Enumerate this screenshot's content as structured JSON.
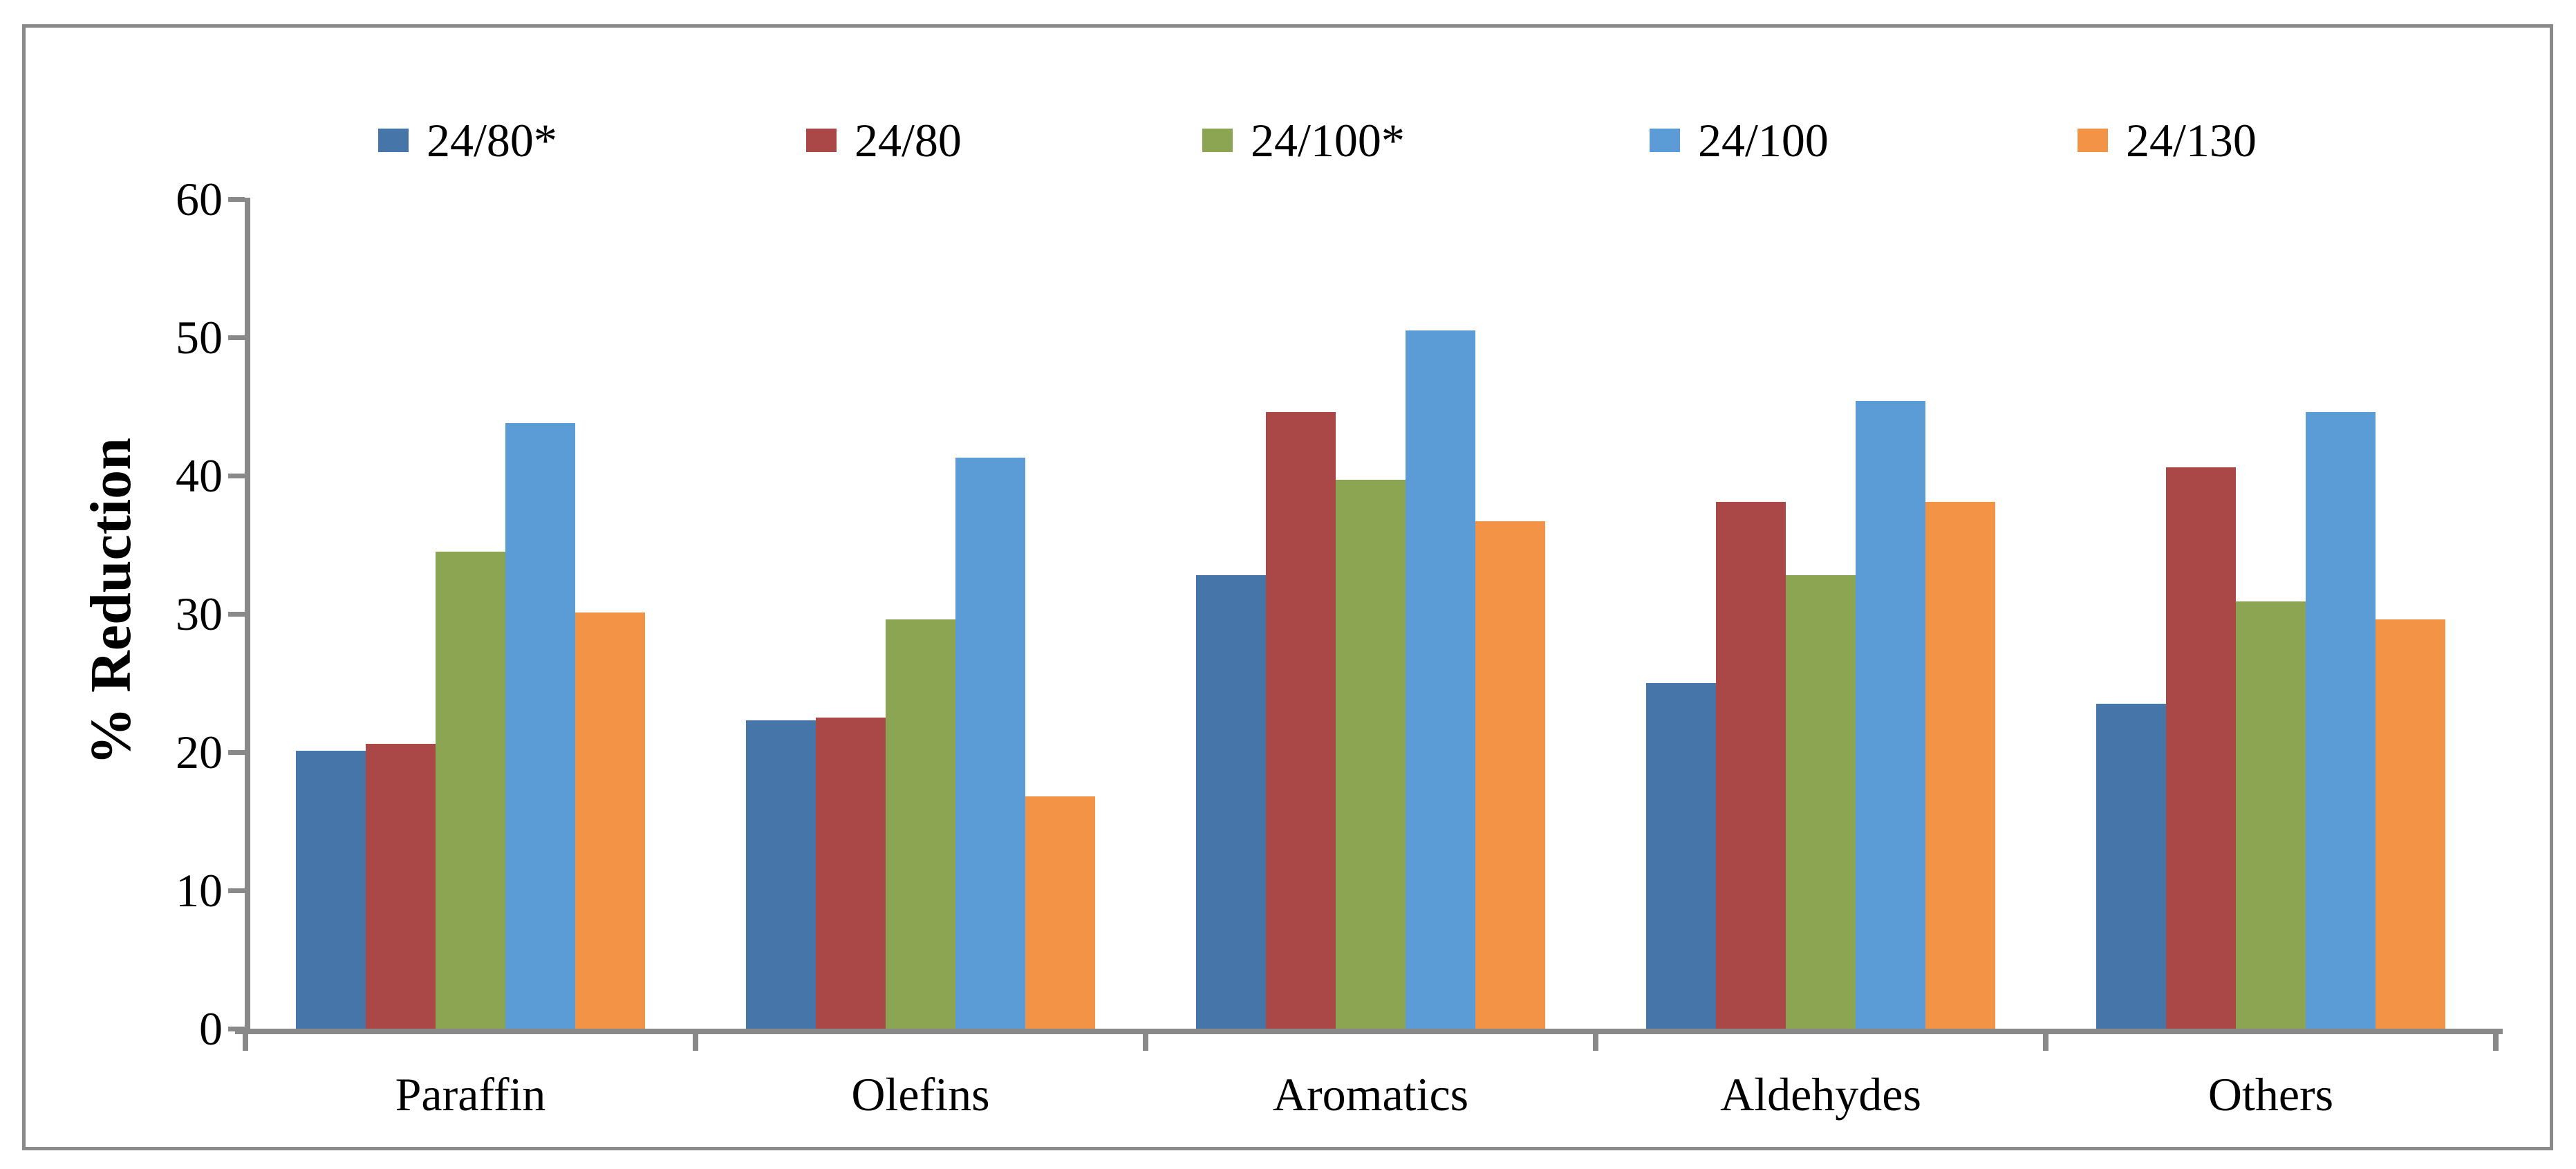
{
  "figure": {
    "border_color": "#8A8A8A",
    "axis_color": "#898989",
    "background": "#FFFFFF"
  },
  "chart_data": {
    "type": "bar",
    "title": "",
    "xlabel": "",
    "ylabel": "% Reduction",
    "ylim": [
      0,
      60
    ],
    "yticks": [
      0,
      10,
      20,
      30,
      40,
      50,
      60
    ],
    "grid": false,
    "legend_position": "top",
    "categories": [
      "Paraffin",
      "Olefins",
      "Aromatics",
      "Aldehydes",
      "Others"
    ],
    "series": [
      {
        "name": "24/80*",
        "color": "#4676A9",
        "values": [
          20.1,
          22.3,
          32.8,
          25.0,
          23.5
        ]
      },
      {
        "name": "24/80",
        "color": "#A94846",
        "values": [
          20.6,
          22.5,
          44.6,
          38.1,
          40.6
        ]
      },
      {
        "name": "24/100*",
        "color": "#8CA552",
        "values": [
          34.5,
          29.6,
          39.7,
          32.8,
          30.9
        ]
      },
      {
        "name": "24/100",
        "color": "#5C9CD6",
        "values": [
          43.8,
          41.3,
          50.5,
          45.4,
          44.6
        ]
      },
      {
        "name": "24/130",
        "color": "#F29346",
        "values": [
          30.1,
          16.8,
          36.7,
          38.1,
          29.6
        ]
      }
    ]
  }
}
